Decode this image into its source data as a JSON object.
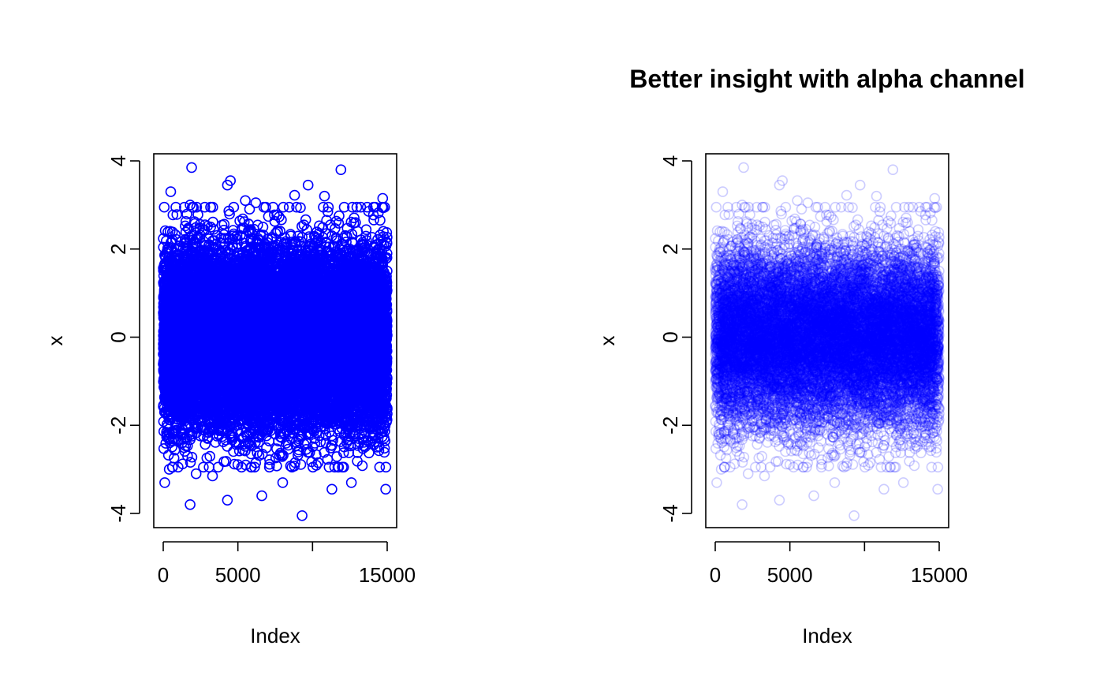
{
  "chart_data": [
    {
      "type": "scatter",
      "title": "",
      "xlabel": "Index",
      "ylabel": "x",
      "xlim": [
        0,
        15000
      ],
      "ylim": [
        -4,
        4
      ],
      "x_ticks": [
        0,
        5000,
        10000,
        15000
      ],
      "x_tick_labels": [
        "0",
        "5000",
        "",
        "15000"
      ],
      "y_ticks": [
        -4,
        -2,
        0,
        2,
        4
      ],
      "y_tick_labels": [
        "-4",
        "-2",
        "0",
        "2",
        "4"
      ],
      "n_points": 15000,
      "distribution": "standard normal",
      "marker": "open circle",
      "color": "#0000FF",
      "alpha": 1.0,
      "outliers": [
        {
          "x": 1900,
          "y": 3.85
        },
        {
          "x": 4500,
          "y": 3.55
        },
        {
          "x": 11900,
          "y": 3.8
        },
        {
          "x": 4300,
          "y": 3.45
        },
        {
          "x": 9700,
          "y": 3.45
        },
        {
          "x": 500,
          "y": 3.3
        },
        {
          "x": 8800,
          "y": 3.22
        },
        {
          "x": 14700,
          "y": 3.15
        },
        {
          "x": 5500,
          "y": 3.1
        },
        {
          "x": 6200,
          "y": 3.05
        },
        {
          "x": 1800,
          "y": 3.0
        },
        {
          "x": 10800,
          "y": 3.2
        },
        {
          "x": 100,
          "y": -3.3
        },
        {
          "x": 1800,
          "y": -3.8
        },
        {
          "x": 4300,
          "y": -3.7
        },
        {
          "x": 9300,
          "y": -4.05
        },
        {
          "x": 6600,
          "y": -3.6
        },
        {
          "x": 14900,
          "y": -3.45
        },
        {
          "x": 11300,
          "y": -3.45
        },
        {
          "x": 8000,
          "y": -3.3
        },
        {
          "x": 3300,
          "y": -3.15
        },
        {
          "x": 2200,
          "y": -3.1
        },
        {
          "x": 12600,
          "y": -3.3
        },
        {
          "x": 400,
          "y": -3.0
        }
      ]
    },
    {
      "type": "scatter",
      "title": "Better insight with alpha channel",
      "xlabel": "Index",
      "ylabel": "x",
      "xlim": [
        0,
        15000
      ],
      "ylim": [
        -4,
        4
      ],
      "x_ticks": [
        0,
        5000,
        10000,
        15000
      ],
      "x_tick_labels": [
        "0",
        "5000",
        "",
        "15000"
      ],
      "y_ticks": [
        -4,
        -2,
        0,
        2,
        4
      ],
      "y_tick_labels": [
        "-4",
        "-2",
        "0",
        "2",
        "4"
      ],
      "n_points": 15000,
      "distribution": "standard normal",
      "marker": "open circle",
      "color": "#0000FF",
      "alpha": 0.2,
      "outliers": [
        {
          "x": 1900,
          "y": 3.85
        },
        {
          "x": 4500,
          "y": 3.55
        },
        {
          "x": 11900,
          "y": 3.8
        },
        {
          "x": 4300,
          "y": 3.45
        },
        {
          "x": 9700,
          "y": 3.45
        },
        {
          "x": 500,
          "y": 3.3
        },
        {
          "x": 8800,
          "y": 3.22
        },
        {
          "x": 14700,
          "y": 3.15
        },
        {
          "x": 5500,
          "y": 3.1
        },
        {
          "x": 6200,
          "y": 3.05
        },
        {
          "x": 1800,
          "y": 3.0
        },
        {
          "x": 10800,
          "y": 3.2
        },
        {
          "x": 100,
          "y": -3.3
        },
        {
          "x": 1800,
          "y": -3.8
        },
        {
          "x": 4300,
          "y": -3.7
        },
        {
          "x": 9300,
          "y": -4.05
        },
        {
          "x": 6600,
          "y": -3.6
        },
        {
          "x": 14900,
          "y": -3.45
        },
        {
          "x": 11300,
          "y": -3.45
        },
        {
          "x": 8000,
          "y": -3.3
        },
        {
          "x": 3300,
          "y": -3.15
        },
        {
          "x": 2200,
          "y": -3.1
        },
        {
          "x": 12600,
          "y": -3.3
        },
        {
          "x": 400,
          "y": -3.0
        }
      ]
    }
  ]
}
